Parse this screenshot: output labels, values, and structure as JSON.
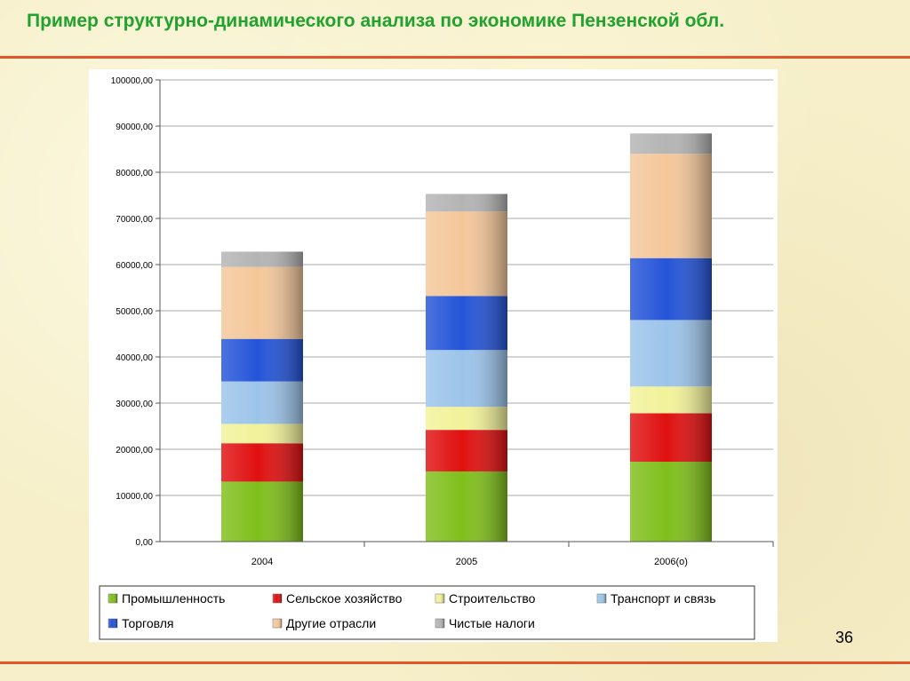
{
  "slide": {
    "title": "Пример структурно-динамического анализа по экономике Пензенской обл.",
    "page_number": "36"
  },
  "chart_data": {
    "type": "bar",
    "stacked": true,
    "categories": [
      "2004",
      "2005",
      "2006(о)"
    ],
    "series": [
      {
        "name": "Промышленность",
        "color": "#7fbf1a",
        "values": [
          13000,
          15200,
          17300
        ]
      },
      {
        "name": "Сельское хозяйство",
        "color": "#e01010",
        "values": [
          8300,
          9000,
          10500
        ]
      },
      {
        "name": "Строительство",
        "color": "#f2f29a",
        "values": [
          4200,
          5000,
          5800
        ]
      },
      {
        "name": "Транспорт и связь",
        "color": "#9cc4ea",
        "values": [
          9200,
          12300,
          14400
        ]
      },
      {
        "name": "Торговля",
        "color": "#2454d8",
        "values": [
          9200,
          11700,
          13400
        ]
      },
      {
        "name": "Другие отрасли",
        "color": "#f4c79a",
        "values": [
          15600,
          18300,
          22600
        ]
      },
      {
        "name": "Чистые налоги",
        "color": "#b4b4b4",
        "values": [
          3300,
          3800,
          4400
        ]
      }
    ],
    "ylim": [
      0,
      100000
    ],
    "yticks": [
      "0,00",
      "10000,00",
      "20000,00",
      "30000,00",
      "40000,00",
      "50000,00",
      "60000,00",
      "70000,00",
      "80000,00",
      "90000,00",
      "100000,00"
    ],
    "grid": true,
    "legend_position": "bottom"
  }
}
